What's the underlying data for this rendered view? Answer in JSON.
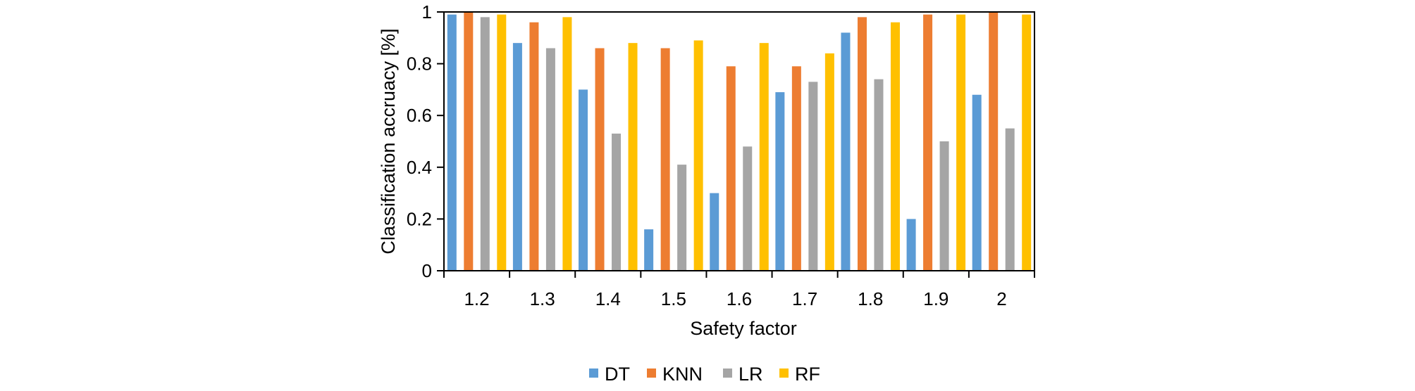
{
  "chart_data": {
    "type": "bar",
    "xlabel": "Safety factor",
    "ylabel": "Classification accruacy  [%]",
    "categories": [
      "1.2",
      "1.3",
      "1.4",
      "1.5",
      "1.6",
      "1.7",
      "1.8",
      "1.9",
      "2"
    ],
    "ylim": [
      0,
      1
    ],
    "yticks": [
      "0",
      "0.2",
      "0.4",
      "0.6",
      "0.8",
      "1"
    ],
    "grid": false,
    "legend_position": "bottom",
    "series": [
      {
        "name": "DT",
        "color": "#5B9BD5",
        "values": [
          0.99,
          0.88,
          0.7,
          0.16,
          0.3,
          0.69,
          0.92,
          0.2,
          0.68
        ]
      },
      {
        "name": "KNN",
        "color": "#ED7D31",
        "values": [
          1.0,
          0.96,
          0.86,
          0.86,
          0.79,
          0.79,
          0.98,
          0.99,
          1.0
        ]
      },
      {
        "name": "LR",
        "color": "#A5A5A5",
        "values": [
          0.98,
          0.86,
          0.53,
          0.41,
          0.48,
          0.73,
          0.74,
          0.5,
          0.55
        ]
      },
      {
        "name": "RF",
        "color": "#FFC000",
        "values": [
          0.99,
          0.98,
          0.88,
          0.89,
          0.88,
          0.84,
          0.96,
          0.99,
          0.99
        ]
      }
    ]
  }
}
